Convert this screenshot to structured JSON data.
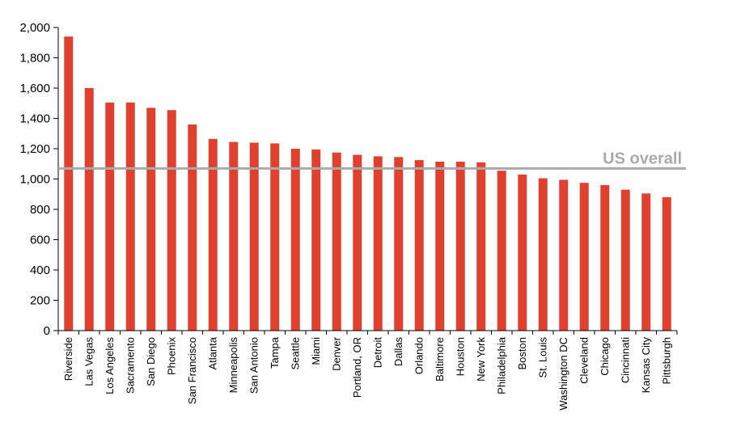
{
  "chart_data": {
    "type": "bar",
    "categories": [
      "Riverside",
      "Las Vegas",
      "Los Angeles",
      "Sacramento",
      "San Diego",
      "Phoenix",
      "San Francisco",
      "Atlanta",
      "Minneapolis",
      "San Antonio",
      "Tampa",
      "Seattle",
      "Miami",
      "Denver",
      "Portland, OR",
      "Detroit",
      "Dallas",
      "Orlando",
      "Baltimore",
      "Houston",
      "New York",
      "Philadelphia",
      "Boston",
      "St. Louis",
      "Washington DC",
      "Cleveland",
      "Chicago",
      "Cincinnati",
      "Kansas City",
      "Pittsburgh"
    ],
    "values": [
      1940,
      1600,
      1505,
      1505,
      1470,
      1455,
      1360,
      1265,
      1245,
      1240,
      1235,
      1200,
      1195,
      1175,
      1160,
      1150,
      1145,
      1125,
      1115,
      1115,
      1110,
      1055,
      1030,
      1005,
      995,
      975,
      960,
      930,
      905,
      880
    ],
    "ylim": [
      0,
      2000
    ],
    "yticks": [
      0,
      200,
      400,
      600,
      800,
      1000,
      1200,
      1400,
      1600,
      1800,
      2000
    ],
    "ytick_labels": [
      "0",
      "200",
      "400",
      "600",
      "800",
      "1,000",
      "1,200",
      "1,400",
      "1,600",
      "1,800",
      "2,000"
    ],
    "reference_line": {
      "label": "US overall",
      "value": 1070
    },
    "title": "",
    "xlabel": "",
    "ylabel": "",
    "grid": false,
    "colors": {
      "bar": "#e0412f",
      "reference": "#aaaaaa",
      "axis": "#000000"
    }
  }
}
